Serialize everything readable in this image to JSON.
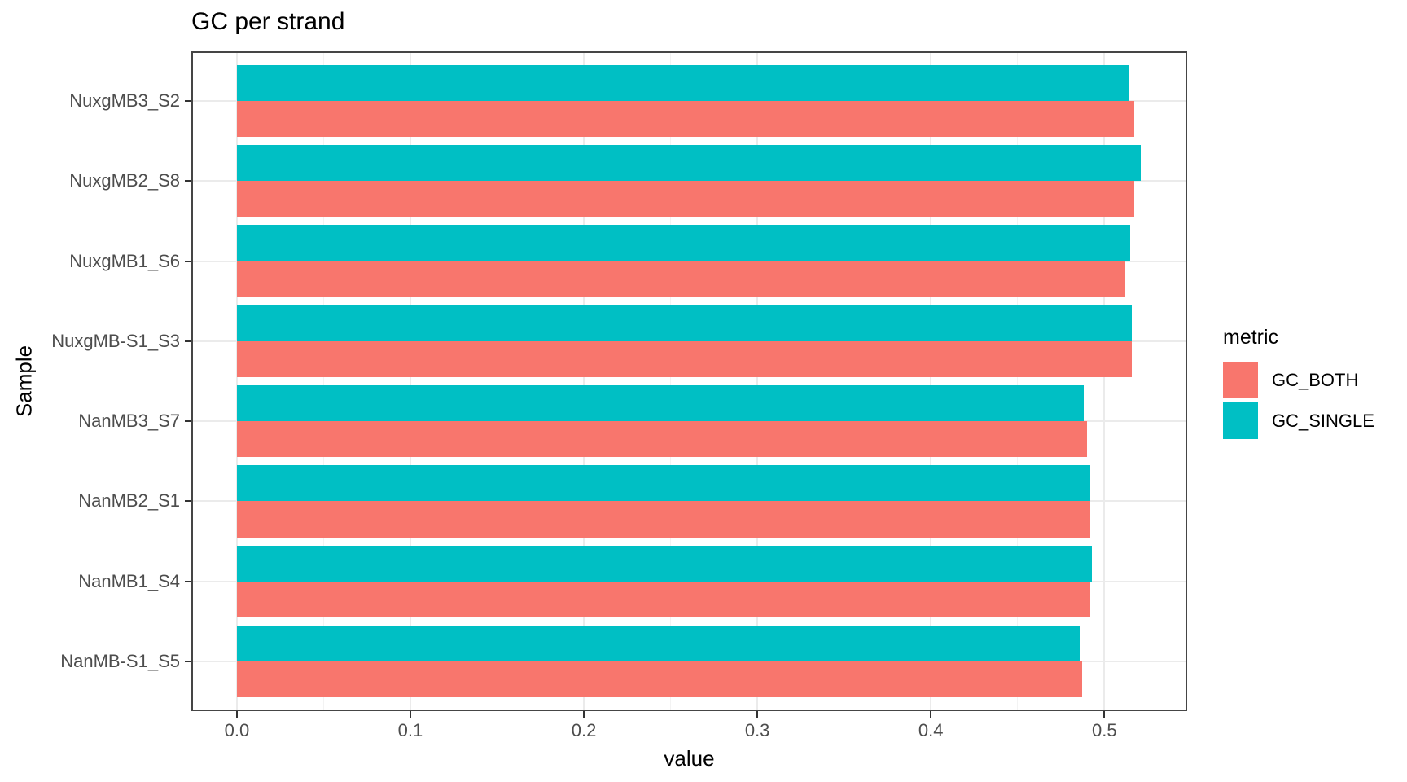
{
  "title": "GC per strand",
  "chart_data": {
    "type": "bar",
    "orientation": "horizontal",
    "title": "GC per strand",
    "xlabel": "value",
    "ylabel": "Sample",
    "categories": [
      "NuxgMB3_S2",
      "NuxgMB2_S8",
      "NuxgMB1_S6",
      "NuxgMB-S1_S3",
      "NanMB3_S7",
      "NanMB2_S1",
      "NanMB1_S4",
      "NanMB-S1_S5"
    ],
    "series": [
      {
        "name": "GC_BOTH",
        "color": "#F8766D",
        "values": [
          0.517,
          0.517,
          0.512,
          0.516,
          0.49,
          0.492,
          0.492,
          0.487
        ]
      },
      {
        "name": "GC_SINGLE",
        "color": "#00BFC4",
        "values": [
          0.514,
          0.521,
          0.515,
          0.516,
          0.488,
          0.492,
          0.493,
          0.486
        ]
      }
    ],
    "x_ticks": [
      0.0,
      0.1,
      0.2,
      0.3,
      0.4,
      0.5
    ],
    "x_tick_labels": [
      "0.0",
      "0.1",
      "0.2",
      "0.3",
      "0.4",
      "0.5"
    ],
    "x_minor_ticks": [
      0.05,
      0.15,
      0.25,
      0.35,
      0.45
    ],
    "xlim": [
      -0.0253,
      0.5468
    ],
    "grid": true,
    "legend": {
      "title": "metric",
      "position": "right",
      "entries": [
        "GC_BOTH",
        "GC_SINGLE"
      ]
    }
  },
  "colors": {
    "gc_both": "#F8766D",
    "gc_single": "#00BFC4",
    "axis_text": "#4d4d4d",
    "panel_border": "#454545",
    "grid_major": "#ebebeb"
  }
}
